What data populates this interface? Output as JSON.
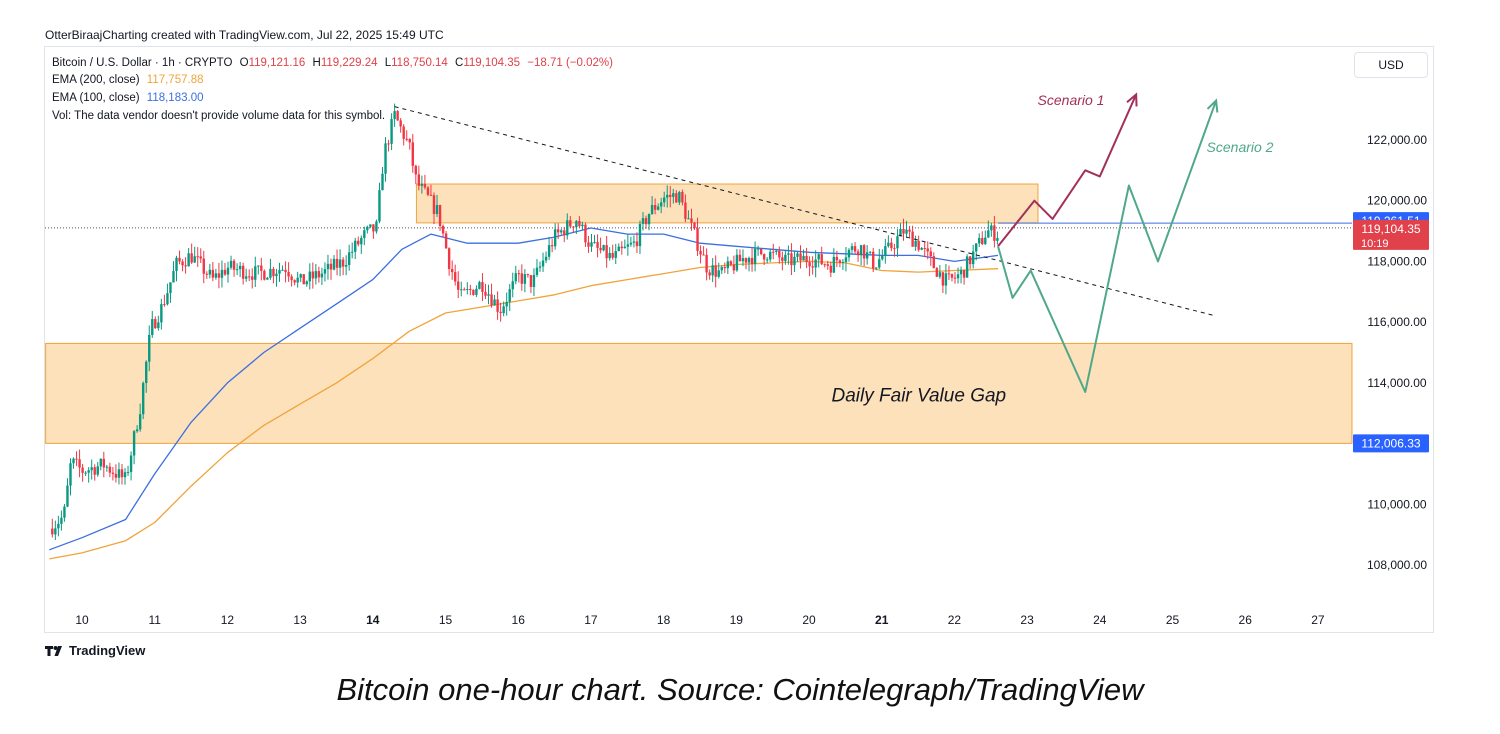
{
  "header": {
    "attribution": "OtterBiraajCharting created with TradingView.com, Jul 22, 2025 15:49 UTC"
  },
  "legend": {
    "symbol": "Bitcoin / U.S. Dollar · 1h · CRYPTO",
    "open_label": "O",
    "open": "119,121.16",
    "high_label": "H",
    "high": "119,229.24",
    "low_label": "L",
    "low": "118,750.14",
    "close_label": "C",
    "close": "119,104.35",
    "change": "−18.71 (−0.02%)",
    "ema200_label": "EMA (200, close)",
    "ema200_value": "117,757.88",
    "ema100_label": "EMA (100, close)",
    "ema100_value": "118,183.00",
    "vol_text": "Vol: The data vendor doesn't provide volume data for this symbol."
  },
  "currency_button": "USD",
  "branding": "TradingView",
  "caption": "Bitcoin one-hour chart. Source: Cointelegraph/TradingView",
  "colors": {
    "up": "#089981",
    "down": "#f23645",
    "ema100": "#3c6fe0",
    "ema200": "#f0a43a",
    "zone_fill": "#fbdcae",
    "zone_stroke": "#f0a43a",
    "scenario1": "#a3305a",
    "scenario2": "#4fa88a",
    "price_line": "#3c6fe0"
  },
  "chart_data": {
    "type": "candlestick",
    "timeframe": "1h",
    "x_ticks": [
      "10",
      "11",
      "12",
      "13",
      "14",
      "15",
      "16",
      "17",
      "18",
      "19",
      "20",
      "21",
      "22",
      "23",
      "24",
      "25",
      "26",
      "27"
    ],
    "bold_x_ticks": [
      "14",
      "21"
    ],
    "y_ticks": [
      {
        "value": 108000,
        "label": "108,000.00"
      },
      {
        "value": 110000,
        "label": "110,000.00"
      },
      {
        "value": 114000,
        "label": "114,000.00"
      },
      {
        "value": 116000,
        "label": "116,000.00"
      },
      {
        "value": 118000,
        "label": "118,000.00"
      },
      {
        "value": 120000,
        "label": "120,000.00"
      },
      {
        "value": 122000,
        "label": "122,000.00"
      }
    ],
    "ylim": [
      106700,
      123600
    ],
    "xlim": [
      9.5,
      27.5
    ],
    "price_close_path": [
      [
        9.55,
        109.2
      ],
      [
        9.75,
        109.6
      ],
      [
        9.85,
        111.4
      ],
      [
        10.0,
        111.1
      ],
      [
        10.3,
        111.3
      ],
      [
        10.6,
        110.8
      ],
      [
        10.8,
        113.2
      ],
      [
        10.95,
        115.8
      ],
      [
        11.1,
        116.5
      ],
      [
        11.3,
        117.9
      ],
      [
        11.5,
        118.2
      ],
      [
        11.8,
        117.4
      ],
      [
        12.0,
        117.8
      ],
      [
        12.4,
        117.6
      ],
      [
        12.8,
        117.8
      ],
      [
        13.0,
        117.3
      ],
      [
        13.3,
        117.6
      ],
      [
        13.6,
        118.0
      ],
      [
        13.9,
        118.9
      ],
      [
        14.05,
        119.1
      ],
      [
        14.15,
        121.5
      ],
      [
        14.3,
        122.8
      ],
      [
        14.5,
        121.8
      ],
      [
        14.6,
        120.6
      ],
      [
        14.9,
        119.6
      ],
      [
        15.05,
        118.0
      ],
      [
        15.2,
        116.8
      ],
      [
        15.5,
        117.3
      ],
      [
        15.75,
        116.4
      ],
      [
        16.0,
        117.5
      ],
      [
        16.2,
        117.3
      ],
      [
        16.5,
        118.8
      ],
      [
        16.8,
        119.4
      ],
      [
        17.0,
        118.5
      ],
      [
        17.3,
        118.1
      ],
      [
        17.6,
        118.6
      ],
      [
        17.8,
        119.6
      ],
      [
        18.0,
        120.1
      ],
      [
        18.2,
        120.2
      ],
      [
        18.35,
        119.3
      ],
      [
        18.5,
        118.4
      ],
      [
        18.6,
        117.8
      ],
      [
        18.8,
        117.6
      ],
      [
        19.1,
        118.1
      ],
      [
        19.4,
        118.3
      ],
      [
        19.7,
        118.0
      ],
      [
        20.0,
        118.1
      ],
      [
        20.3,
        117.9
      ],
      [
        20.5,
        118.3
      ],
      [
        20.7,
        118.5
      ],
      [
        20.9,
        117.9
      ],
      [
        21.1,
        118.4
      ],
      [
        21.3,
        119.0
      ],
      [
        21.5,
        118.6
      ],
      [
        21.7,
        117.9
      ],
      [
        21.9,
        117.3
      ],
      [
        22.1,
        117.6
      ],
      [
        22.3,
        118.4
      ],
      [
        22.45,
        119.0
      ],
      [
        22.6,
        118.9
      ]
    ],
    "ema100": [
      [
        9.55,
        108.5
      ],
      [
        10.0,
        108.9
      ],
      [
        10.6,
        109.5
      ],
      [
        11.0,
        111.0
      ],
      [
        11.5,
        112.7
      ],
      [
        12.0,
        114.0
      ],
      [
        12.5,
        115.0
      ],
      [
        13.0,
        115.8
      ],
      [
        13.5,
        116.6
      ],
      [
        14.0,
        117.4
      ],
      [
        14.4,
        118.4
      ],
      [
        14.8,
        118.9
      ],
      [
        15.3,
        118.6
      ],
      [
        16.0,
        118.6
      ],
      [
        16.5,
        118.8
      ],
      [
        17.0,
        119.1
      ],
      [
        17.5,
        118.9
      ],
      [
        18.0,
        118.9
      ],
      [
        18.5,
        118.6
      ],
      [
        19.0,
        118.5
      ],
      [
        19.5,
        118.4
      ],
      [
        20.0,
        118.3
      ],
      [
        20.5,
        118.25
      ],
      [
        21.0,
        118.2
      ],
      [
        21.5,
        118.2
      ],
      [
        22.0,
        118.0
      ],
      [
        22.6,
        118.2
      ]
    ],
    "ema200": [
      [
        9.55,
        108.2
      ],
      [
        10.0,
        108.4
      ],
      [
        10.6,
        108.8
      ],
      [
        11.0,
        109.4
      ],
      [
        11.5,
        110.6
      ],
      [
        12.0,
        111.7
      ],
      [
        12.5,
        112.6
      ],
      [
        13.0,
        113.3
      ],
      [
        13.5,
        114.0
      ],
      [
        14.0,
        114.8
      ],
      [
        14.5,
        115.7
      ],
      [
        15.0,
        116.3
      ],
      [
        15.5,
        116.5
      ],
      [
        16.0,
        116.7
      ],
      [
        16.5,
        116.9
      ],
      [
        17.0,
        117.2
      ],
      [
        17.5,
        117.4
      ],
      [
        18.0,
        117.6
      ],
      [
        18.5,
        117.8
      ],
      [
        19.0,
        117.9
      ],
      [
        19.5,
        117.95
      ],
      [
        20.0,
        118.0
      ],
      [
        20.5,
        117.95
      ],
      [
        21.0,
        117.7
      ],
      [
        21.5,
        117.65
      ],
      [
        22.0,
        117.7
      ],
      [
        22.6,
        117.76
      ]
    ],
    "zones": [
      {
        "name": "upper_supply",
        "x0": 14.6,
        "x1": 23.15,
        "y_low": 119270,
        "y_high": 120550
      },
      {
        "name": "daily_fvg",
        "x0": 9.5,
        "x1": 27.5,
        "y_low": 112006.33,
        "y_high": 115300,
        "label": "Daily Fair Value Gap"
      }
    ],
    "trendline": {
      "points": [
        [
          14.3,
          123100
        ],
        [
          25.6,
          116200
        ]
      ],
      "style": "dashed"
    },
    "horizontal_lines": [
      {
        "value": 119261.51,
        "label": "119,261.51",
        "style": "solid"
      },
      {
        "value": 119104.35,
        "label": "119,104.35",
        "countdown": "10:19",
        "style": "dotted"
      },
      {
        "value": 112006.33,
        "label": "112,006.33"
      }
    ],
    "scenarios": [
      {
        "name": "Scenario 1",
        "points": [
          [
            22.6,
            118500
          ],
          [
            23.1,
            120000
          ],
          [
            23.35,
            119400
          ],
          [
            23.8,
            121000
          ],
          [
            24.0,
            120800
          ],
          [
            24.5,
            123500
          ]
        ]
      },
      {
        "name": "Scenario 2",
        "points": [
          [
            22.6,
            118500
          ],
          [
            22.8,
            116800
          ],
          [
            23.05,
            117700
          ],
          [
            23.8,
            113700
          ],
          [
            24.4,
            120500
          ],
          [
            24.8,
            118000
          ],
          [
            25.6,
            123300
          ]
        ]
      }
    ]
  }
}
